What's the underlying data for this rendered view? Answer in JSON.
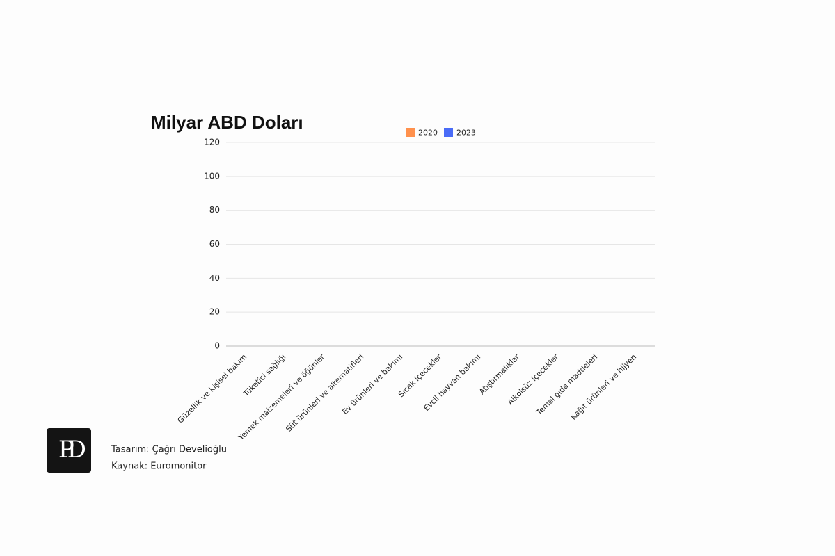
{
  "chart_data": {
    "type": "bar",
    "title": "Milyar ABD Doları",
    "categories": [
      "Güzellik ve kişisel bakım",
      "Tüketici sağlığı",
      "Yemek malzemeleri ve öğünler",
      "Süt ürünleri ve alternatifleri",
      "Ev ürünleri ve bakımı",
      "Sıcak içecekler",
      "Evcil hayvan bakımı",
      "Atıştırmalıklar",
      "Alkolsüz içecekler",
      "Temel gıda maddeleri",
      "Kağıt ürünleri ve hijyen"
    ],
    "series": [
      {
        "name": "2020",
        "color": "#ff914d",
        "values": [
          null,
          null,
          null,
          null,
          null,
          null,
          null,
          null,
          null,
          null,
          null
        ]
      },
      {
        "name": "2023",
        "color": "#4a6cf7",
        "values": [
          null,
          null,
          null,
          null,
          null,
          null,
          null,
          null,
          null,
          null,
          null
        ]
      }
    ],
    "ylim": [
      0,
      120
    ],
    "yticks": [
      0,
      20,
      40,
      60,
      80,
      100,
      120
    ],
    "grid": true,
    "legend": "top"
  },
  "footer": {
    "logo": "PD",
    "design": "Tasarım: Çağrı Develioğlu",
    "source": "Kaynak: Euromonitor"
  }
}
